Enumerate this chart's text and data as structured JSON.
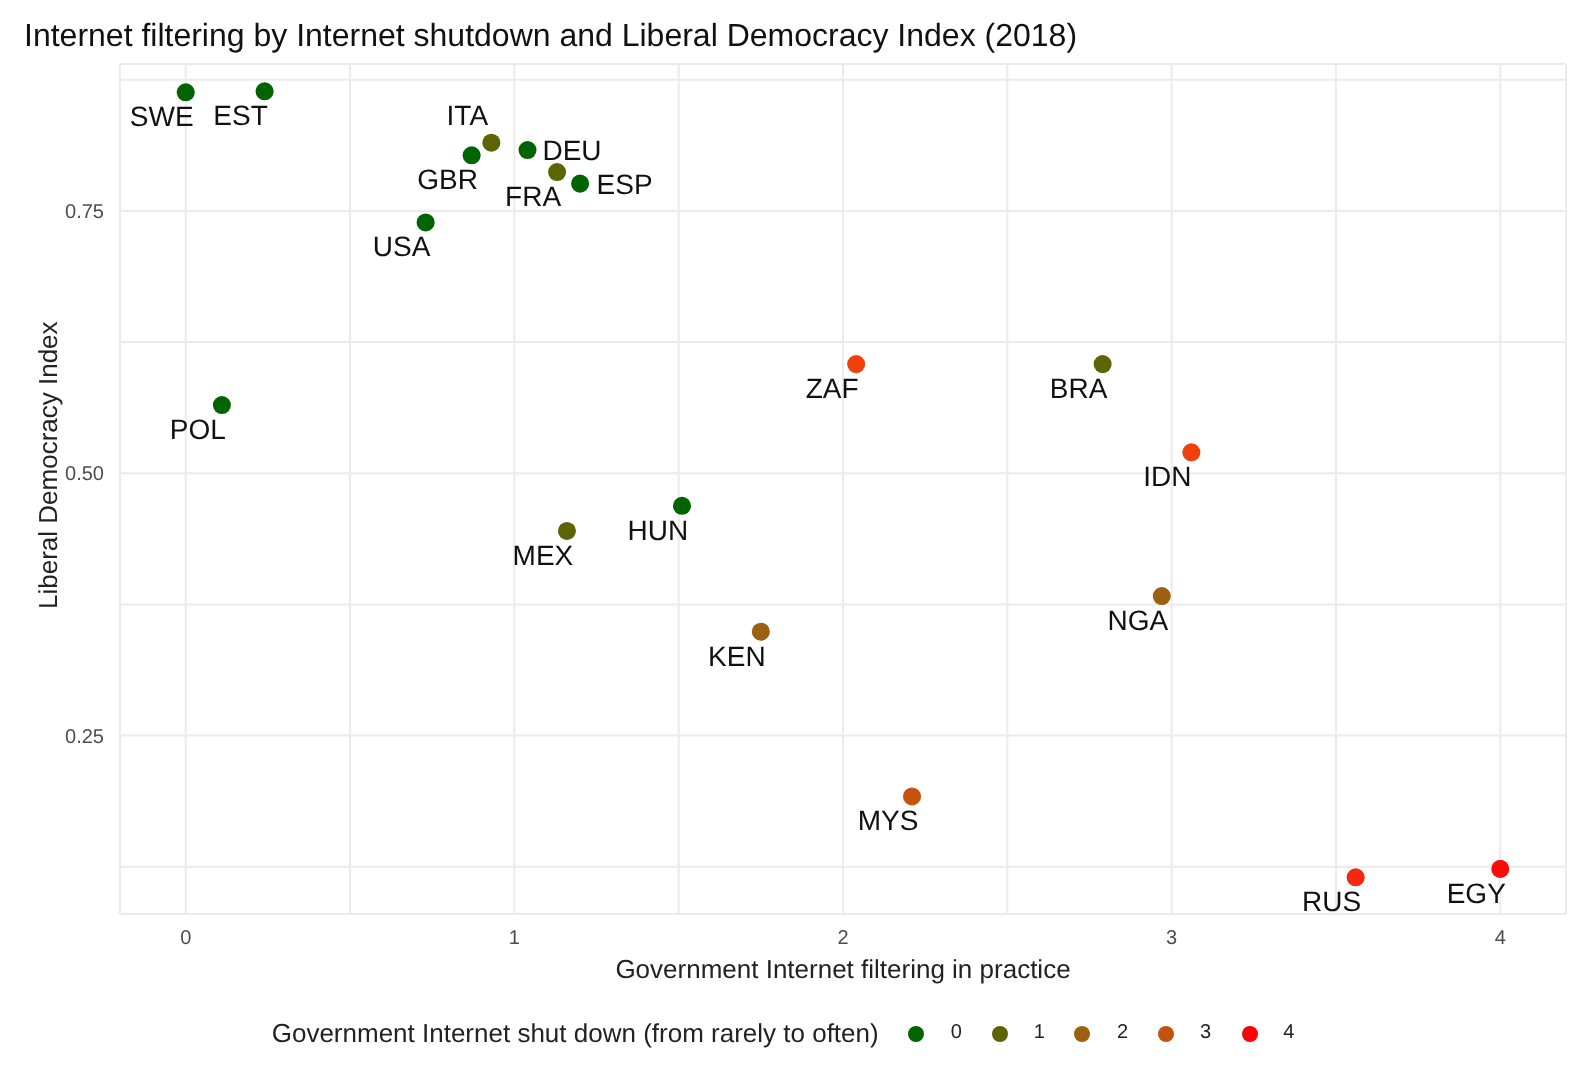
{
  "chart_data": {
    "type": "scatter",
    "title": "Internet filtering by Internet shutdown and Liberal Democracy Index (2018)",
    "xlabel": "Government Internet filtering in practice",
    "ylabel": "Liberal Democracy Index",
    "legend_title": "Government Internet shut down (from rarely to often)",
    "legend": "bottom",
    "grid": true,
    "marker": "circle",
    "xlim": [
      -0.2,
      4.2
    ],
    "xticks": [
      0,
      {
        "value": 0.5,
        "label": null
      },
      1,
      {
        "value": 1.5,
        "label": null
      },
      2,
      {
        "value": 2.5,
        "label": null
      },
      3,
      {
        "value": 3.5,
        "label": null
      },
      4
    ],
    "ylim": [
      0.08,
      0.89
    ],
    "yticks": [
      {
        "value": 0.125,
        "label": null
      },
      {
        "value": 0.25,
        "label": "0.25"
      },
      {
        "value": 0.375,
        "label": null
      },
      {
        "value": 0.5,
        "label": "0.50"
      },
      {
        "value": 0.625,
        "label": null
      },
      {
        "value": 0.75,
        "label": "0.75"
      },
      {
        "value": 0.875,
        "label": null
      }
    ],
    "series": [
      {
        "name": "0",
        "color": "#006400",
        "x": [
          0,
          0.24,
          0.87,
          1.04,
          1.2,
          0.73,
          0.11,
          1.51
        ],
        "values": [
          0.863,
          0.864,
          0.803,
          0.808,
          0.776,
          0.739,
          0.565,
          0.469
        ]
      },
      {
        "name": "1",
        "color": "#5c6405",
        "x": [
          0.93,
          1.13,
          2.79,
          1.16
        ],
        "values": [
          0.815,
          0.787,
          0.604,
          0.445
        ]
      },
      {
        "name": "2",
        "color": "#9b6010",
        "x": [
          1.75,
          2.97
        ],
        "values": [
          0.349,
          0.383
        ]
      },
      {
        "name": "3",
        "color": "#c4530f",
        "x": [
          2.21
        ],
        "values": [
          0.192
        ]
      },
      {
        "name": "4",
        "color": "#ff0000",
        "x": [
          2.04,
          3.06,
          3.56,
          4.0
        ],
        "values": [
          0.604,
          0.52,
          0.115,
          0.123
        ],
        "colors": [
          "#f0400c",
          "#f0400c",
          "#f52812",
          "#ff0a0a"
        ]
      }
    ],
    "annotations": [
      {
        "text": "SWE",
        "x": 0,
        "y": 0.863
      },
      {
        "text": "EST",
        "x": 0.24,
        "y": 0.864
      },
      {
        "text": "GBR",
        "x": 0.87,
        "y": 0.803
      },
      {
        "text": "ITA",
        "x": 0.93,
        "y": 0.815
      },
      {
        "text": "DEU",
        "x": 1.04,
        "y": 0.808
      },
      {
        "text": "FRA",
        "x": 1.13,
        "y": 0.787
      },
      {
        "text": "ESP",
        "x": 1.2,
        "y": 0.776
      },
      {
        "text": "USA",
        "x": 0.73,
        "y": 0.739
      },
      {
        "text": "POL",
        "x": 0.11,
        "y": 0.565
      },
      {
        "text": "ZAF",
        "x": 2.04,
        "y": 0.604
      },
      {
        "text": "BRA",
        "x": 2.79,
        "y": 0.604
      },
      {
        "text": "IDN",
        "x": 3.06,
        "y": 0.52
      },
      {
        "text": "HUN",
        "x": 1.51,
        "y": 0.469
      },
      {
        "text": "MEX",
        "x": 1.16,
        "y": 0.445
      },
      {
        "text": "KEN",
        "x": 1.75,
        "y": 0.349
      },
      {
        "text": "NGA",
        "x": 2.97,
        "y": 0.383
      },
      {
        "text": "MYS",
        "x": 2.21,
        "y": 0.192
      },
      {
        "text": "RUS",
        "x": 3.56,
        "y": 0.115
      },
      {
        "text": "EGY",
        "x": 4.0,
        "y": 0.123
      }
    ]
  }
}
